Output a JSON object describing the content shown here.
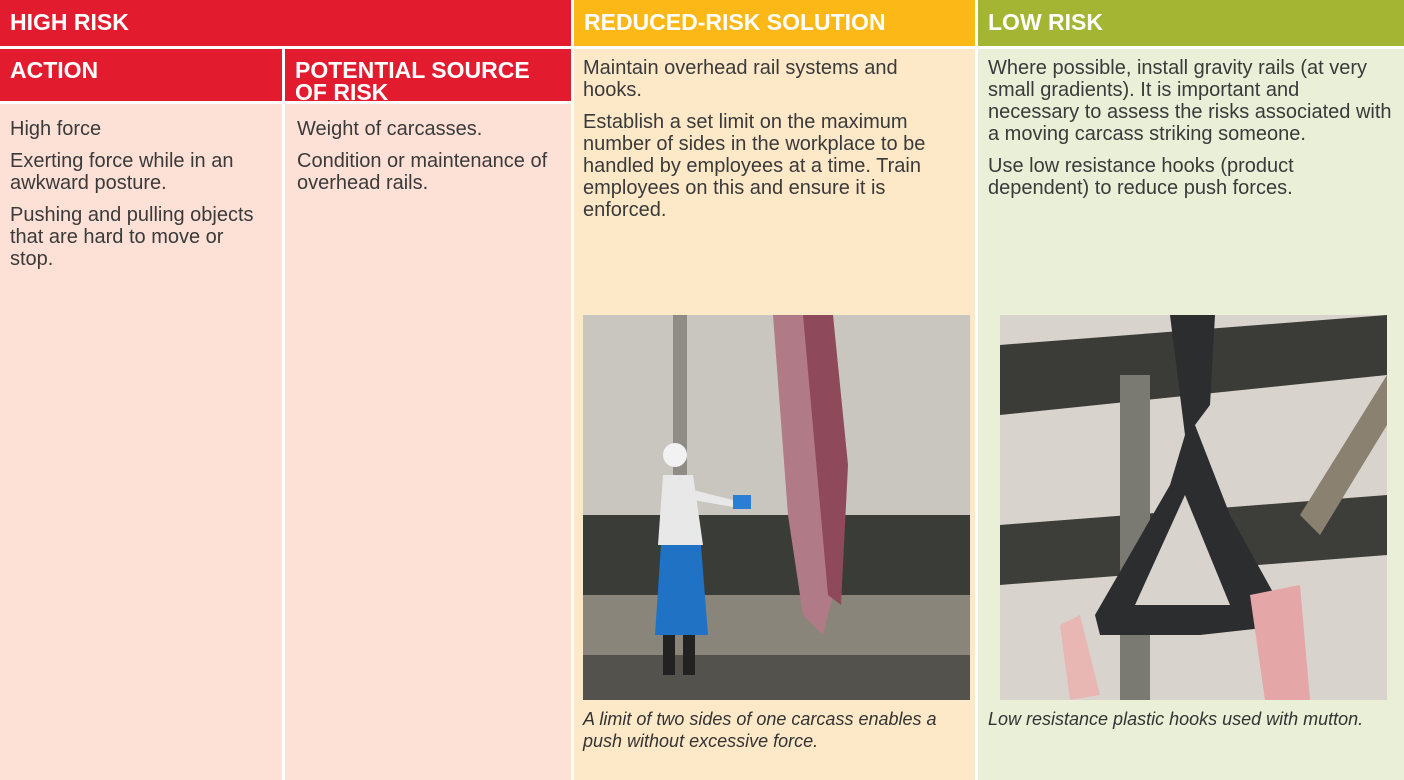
{
  "header": {
    "high_risk": "HIGH RISK",
    "reduced": "REDUCED-RISK SOLUTION",
    "low": "LOW RISK"
  },
  "subheaders": {
    "action": "ACTION",
    "source": "POTENTIAL SOURCE OF RISK"
  },
  "action": [
    "High force",
    "Exerting force while in an awkward posture.",
    "Pushing and pulling objects that are hard to move or stop."
  ],
  "source": [
    "Weight of carcasses.",
    "Condition or maintenance of overhead rails."
  ],
  "reduced": {
    "paragraphs": [
      "Maintain overhead rail systems and hooks.",
      "Establish a set limit on the maximum number of sides in the workplace to be handled by employees at a time. Train employees on this and ensure it is enforced."
    ],
    "caption": "A limit of two sides of one carcass enables a push without excessive force."
  },
  "low": {
    "paragraphs": [
      "Where possible, install gravity rails (at very small gradients). It is important and necessary to assess the risks associated with a moving carcass striking someone.",
      "Use low resistance hooks (product dependent) to reduce push forces."
    ],
    "caption": "Low resistance plastic hooks used with mutton."
  }
}
